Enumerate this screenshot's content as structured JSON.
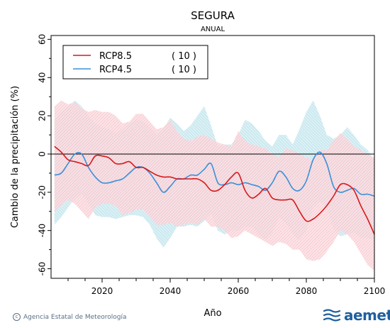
{
  "title": "SEGURA",
  "subtitle": "ANUAL",
  "footer": {
    "credit": "Agencia Estatal de Meteorología",
    "logo": "aemet"
  },
  "colors": {
    "rcp85": "#d7191c",
    "rcp85_band": "#f5b7c0",
    "rcp45": "#3a8fd9",
    "rcp45_band": "#a9d9e5",
    "zero_line": "#000000",
    "logo": "#1f5f9e"
  },
  "chart_data": {
    "type": "line",
    "title": "SEGURA",
    "subtitle": "ANUAL",
    "xlabel": "Año",
    "ylabel": "Cambio de la precipitación (%)",
    "xlim": [
      2005,
      2100
    ],
    "ylim": [
      -65,
      62
    ],
    "xticks": [
      2020,
      2040,
      2060,
      2080,
      2100
    ],
    "yticks": [
      -60,
      -40,
      -20,
      0,
      20,
      40,
      60
    ],
    "grid": false,
    "legend_position": "top-left",
    "series": [
      {
        "name": "RCP8.5",
        "count_label": "( 10 )",
        "color": "#d7191c",
        "x": [
          2006,
          2008,
          2010,
          2012,
          2014,
          2016,
          2018,
          2020,
          2022,
          2024,
          2026,
          2028,
          2030,
          2032,
          2034,
          2036,
          2038,
          2040,
          2042,
          2044,
          2046,
          2048,
          2050,
          2052,
          2054,
          2056,
          2058,
          2060,
          2062,
          2064,
          2066,
          2068,
          2070,
          2072,
          2074,
          2076,
          2078,
          2080,
          2082,
          2084,
          2086,
          2088,
          2090,
          2092,
          2094,
          2096,
          2098,
          2100
        ],
        "y": [
          4,
          1,
          -3,
          -4,
          -5,
          -6,
          -1,
          -1,
          -2,
          -5,
          -5,
          -4,
          -7,
          -7,
          -9,
          -11,
          -12,
          -12,
          -13,
          -13,
          -13,
          -13,
          -15,
          -19,
          -19,
          -16,
          -12,
          -10,
          -19,
          -23,
          -21,
          -18,
          -23,
          -24,
          -24,
          -24,
          -30,
          -35,
          -34,
          -31,
          -27,
          -22,
          -16,
          -16,
          -19,
          -27,
          -34,
          -42
        ],
        "upper": [
          25,
          28,
          26,
          27,
          24,
          22,
          23,
          22,
          22,
          20,
          16,
          17,
          21,
          21,
          17,
          13,
          14,
          18,
          12,
          8,
          7,
          9,
          10,
          8,
          6,
          5,
          4,
          12,
          7,
          5,
          4,
          3,
          0,
          -2,
          3,
          2,
          0,
          -2,
          -3,
          2,
          2,
          7,
          11,
          8,
          4,
          2,
          0,
          -2
        ],
        "lower": [
          -30,
          -27,
          -24,
          -26,
          -30,
          -34,
          -28,
          -26,
          -26,
          -27,
          -32,
          -31,
          -29,
          -29,
          -33,
          -37,
          -37,
          -36,
          -38,
          -37,
          -36,
          -37,
          -34,
          -38,
          -38,
          -40,
          -44,
          -43,
          -40,
          -42,
          -44,
          -46,
          -48,
          -46,
          -47,
          -50,
          -50,
          -55,
          -56,
          -55,
          -51,
          -46,
          -40,
          -42,
          -46,
          -52,
          -58,
          -61
        ]
      },
      {
        "name": "RCP4.5",
        "count_label": "( 10 )",
        "color": "#3a8fd9",
        "x": [
          2006,
          2008,
          2010,
          2012,
          2014,
          2016,
          2018,
          2020,
          2022,
          2024,
          2026,
          2028,
          2030,
          2032,
          2034,
          2036,
          2038,
          2040,
          2042,
          2044,
          2046,
          2048,
          2050,
          2052,
          2054,
          2056,
          2058,
          2060,
          2062,
          2064,
          2066,
          2068,
          2070,
          2072,
          2074,
          2076,
          2078,
          2080,
          2082,
          2084,
          2086,
          2088,
          2090,
          2092,
          2094,
          2096,
          2098,
          2100
        ],
        "y": [
          -11,
          -10,
          -5,
          0,
          0,
          -7,
          -12,
          -15,
          -15,
          -14,
          -13,
          -10,
          -7,
          -7,
          -10,
          -15,
          -20,
          -17,
          -13,
          -13,
          -11,
          -11,
          -8,
          -5,
          -15,
          -16,
          -15,
          -16,
          -15,
          -16,
          -17,
          -19,
          -15,
          -9,
          -12,
          -18,
          -19,
          -14,
          -3,
          1,
          -5,
          -17,
          -20,
          -19,
          -18,
          -21,
          -21,
          -22
        ],
        "upper": [
          18,
          22,
          25,
          28,
          25,
          20,
          16,
          14,
          13,
          11,
          13,
          16,
          18,
          17,
          14,
          10,
          13,
          19,
          16,
          12,
          15,
          20,
          25,
          15,
          4,
          5,
          5,
          10,
          18,
          16,
          12,
          7,
          4,
          10,
          10,
          5,
          13,
          22,
          28,
          20,
          10,
          8,
          10,
          14,
          10,
          5,
          2,
          -3
        ],
        "lower": [
          -37,
          -33,
          -28,
          -23,
          -21,
          -26,
          -32,
          -33,
          -33,
          -34,
          -33,
          -32,
          -32,
          -33,
          -37,
          -44,
          -49,
          -44,
          -38,
          -38,
          -37,
          -38,
          -35,
          -31,
          -40,
          -42,
          -40,
          -40,
          -38,
          -38,
          -42,
          -45,
          -41,
          -33,
          -36,
          -42,
          -45,
          -40,
          -28,
          -25,
          -28,
          -39,
          -43,
          -42,
          -41,
          -44,
          -44,
          -45
        ]
      }
    ]
  }
}
